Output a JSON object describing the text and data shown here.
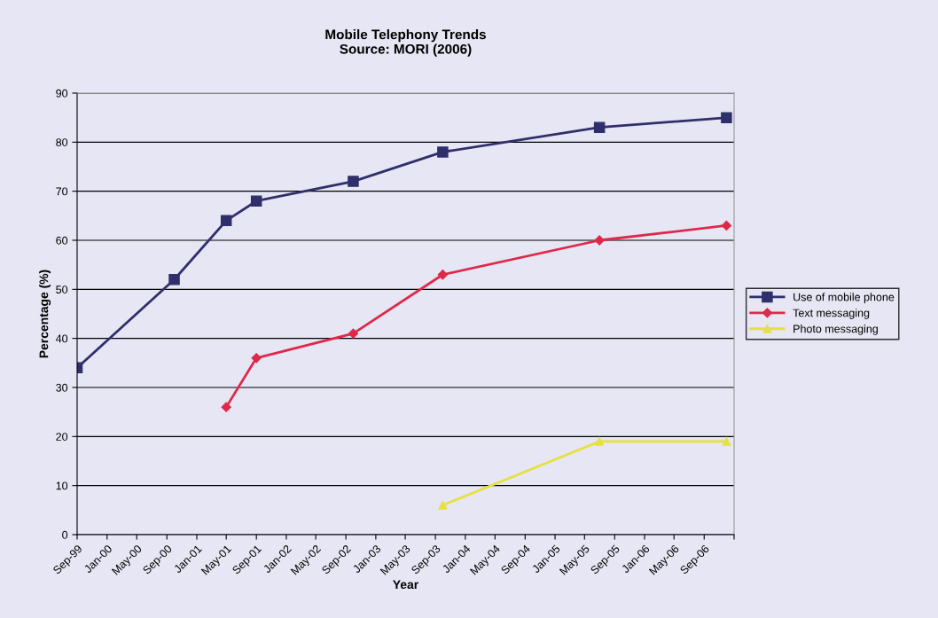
{
  "chart_data": {
    "type": "line",
    "title": "Mobile Telephony Trends\nSource: MORI (2006)",
    "xlabel": "Year",
    "ylabel": "Percentage (%)",
    "x": [
      "1999-09",
      "2000-10",
      "2001-05",
      "2001-09",
      "2002-10",
      "2003-10",
      "2005-07",
      "2006-12"
    ],
    "series": [
      {
        "name": "Use of mobile phone",
        "color": "#2f2f6b",
        "marker": "square",
        "values": [
          34,
          52,
          64,
          68,
          72,
          78,
          83,
          85
        ]
      },
      {
        "name": "Text messaging",
        "color": "#e0284a",
        "marker": "diamond",
        "values": [
          null,
          null,
          26,
          36,
          41,
          53,
          60,
          63
        ]
      },
      {
        "name": "Photo messaging",
        "color": "#e6e040",
        "marker": "triangle",
        "values": [
          null,
          null,
          null,
          null,
          null,
          6,
          19,
          19
        ]
      }
    ],
    "xlim": [
      "1999-09",
      "2007-01"
    ],
    "xticks": [
      {
        "value": "1999-09",
        "label": "Sep-99"
      },
      {
        "value": "2000-01",
        "label": "Jan-00"
      },
      {
        "value": "2000-05",
        "label": "May-00"
      },
      {
        "value": "2000-09",
        "label": "Sep-00"
      },
      {
        "value": "2001-01",
        "label": "Jan-01"
      },
      {
        "value": "2001-05",
        "label": "May-01"
      },
      {
        "value": "2001-09",
        "label": "Sep-01"
      },
      {
        "value": "2002-01",
        "label": "Jan-02"
      },
      {
        "value": "2002-05",
        "label": "May-02"
      },
      {
        "value": "2002-09",
        "label": "Sep-02"
      },
      {
        "value": "2003-01",
        "label": "Jan-03"
      },
      {
        "value": "2003-05",
        "label": "May-03"
      },
      {
        "value": "2003-09",
        "label": "Sep-03"
      },
      {
        "value": "2004-01",
        "label": "Jan-04"
      },
      {
        "value": "2004-05",
        "label": "May-04"
      },
      {
        "value": "2004-09",
        "label": "Sep-04"
      },
      {
        "value": "2005-01",
        "label": "Jan-05"
      },
      {
        "value": "2005-05",
        "label": "May-05"
      },
      {
        "value": "2005-09",
        "label": "Sep-05"
      },
      {
        "value": "2006-01",
        "label": "Jan-06"
      },
      {
        "value": "2006-05",
        "label": "May-06"
      },
      {
        "value": "2006-09",
        "label": "Sep-06"
      },
      {
        "value": "2007-01",
        "label": null
      }
    ],
    "ylim": [
      0,
      90
    ],
    "yticks": [
      0,
      10,
      20,
      30,
      40,
      50,
      60,
      70,
      80,
      90
    ],
    "grid": "y",
    "legend": "right",
    "line_style": "solid"
  }
}
